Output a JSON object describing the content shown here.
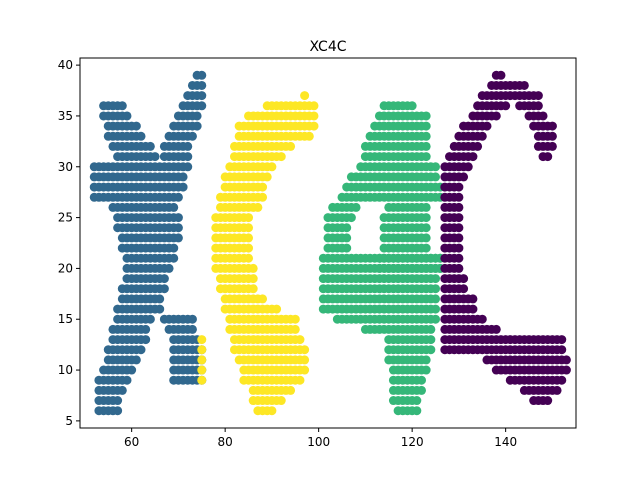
{
  "chart_data": {
    "type": "scatter",
    "title": "XC4C",
    "xlabel": "",
    "ylabel": "",
    "xlim": [
      48.95,
      155.05
    ],
    "ylim": [
      4.3,
      40.7
    ],
    "xticks": [
      60,
      80,
      100,
      120,
      140
    ],
    "yticks": [
      5,
      10,
      15,
      20,
      25,
      30,
      35,
      40
    ],
    "grid": false,
    "colors": {
      "X": "#31688e",
      "C1": "#fde725",
      "4": "#35b779",
      "C2": "#440154"
    },
    "series": [
      {
        "key": "X",
        "rows": [
          [
            6,
            53,
            57
          ],
          [
            7,
            53,
            57
          ],
          [
            8,
            53,
            58
          ],
          [
            9,
            53,
            59
          ],
          [
            10,
            54,
            60
          ],
          [
            11,
            55,
            61
          ],
          [
            12,
            55,
            62
          ],
          [
            13,
            56,
            63
          ],
          [
            14,
            56,
            63
          ],
          [
            15,
            57,
            64
          ],
          [
            16,
            57,
            66
          ],
          [
            17,
            58,
            66
          ],
          [
            18,
            58,
            67
          ],
          [
            19,
            59,
            67
          ],
          [
            20,
            59,
            68
          ],
          [
            21,
            59,
            69
          ],
          [
            22,
            58,
            69
          ],
          [
            23,
            58,
            70
          ],
          [
            24,
            57,
            70
          ],
          [
            25,
            57,
            70
          ],
          [
            26,
            56,
            69
          ],
          [
            27,
            52,
            70
          ],
          [
            28,
            52,
            71
          ],
          [
            29,
            52,
            71
          ],
          [
            30,
            52,
            72
          ],
          [
            31,
            57,
            65
          ],
          [
            32,
            56,
            64
          ],
          [
            33,
            55,
            62
          ],
          [
            34,
            55,
            61
          ],
          [
            35,
            54,
            59
          ],
          [
            36,
            54,
            58
          ],
          [
            9,
            69,
            75
          ],
          [
            10,
            69,
            75
          ],
          [
            11,
            69,
            75
          ],
          [
            12,
            69,
            75
          ],
          [
            13,
            69,
            74
          ],
          [
            14,
            68,
            73
          ],
          [
            15,
            67,
            73
          ],
          [
            31,
            67,
            72
          ],
          [
            32,
            67,
            72
          ],
          [
            33,
            68,
            73
          ],
          [
            34,
            69,
            74
          ],
          [
            35,
            70,
            74
          ],
          [
            36,
            71,
            75
          ],
          [
            37,
            72,
            75
          ],
          [
            38,
            73,
            75
          ],
          [
            39,
            74,
            75
          ]
        ]
      },
      {
        "key": "C1",
        "rows": [
          [
            6,
            87,
            90
          ],
          [
            7,
            86,
            92
          ],
          [
            8,
            86,
            94
          ],
          [
            9,
            84,
            96
          ],
          [
            10,
            84,
            97
          ],
          [
            11,
            83,
            97
          ],
          [
            12,
            82,
            97
          ],
          [
            13,
            82,
            96
          ],
          [
            14,
            81,
            95
          ],
          [
            15,
            81,
            95
          ],
          [
            16,
            80,
            91
          ],
          [
            17,
            80,
            88
          ],
          [
            18,
            79,
            86
          ],
          [
            19,
            79,
            86
          ],
          [
            20,
            78,
            86
          ],
          [
            21,
            78,
            85
          ],
          [
            22,
            78,
            85
          ],
          [
            23,
            78,
            85
          ],
          [
            24,
            78,
            85
          ],
          [
            25,
            78,
            85
          ],
          [
            26,
            79,
            87
          ],
          [
            27,
            79,
            88
          ],
          [
            28,
            80,
            88
          ],
          [
            29,
            80,
            89
          ],
          [
            30,
            81,
            90
          ],
          [
            31,
            82,
            92
          ],
          [
            32,
            82,
            94
          ],
          [
            33,
            83,
            98
          ],
          [
            34,
            83,
            99
          ],
          [
            35,
            85,
            99
          ],
          [
            36,
            89,
            99
          ],
          [
            37,
            97,
            97
          ],
          [
            9,
            75,
            75
          ],
          [
            10,
            75,
            75
          ],
          [
            11,
            75,
            75
          ],
          [
            12,
            75,
            75
          ],
          [
            13,
            75,
            75
          ]
        ]
      },
      {
        "key": "4",
        "rows": [
          [
            6,
            117,
            121
          ],
          [
            7,
            116,
            121
          ],
          [
            8,
            116,
            122
          ],
          [
            9,
            116,
            122
          ],
          [
            10,
            116,
            123
          ],
          [
            11,
            115,
            123
          ],
          [
            12,
            115,
            124
          ],
          [
            13,
            115,
            124
          ],
          [
            14,
            110,
            124
          ],
          [
            15,
            104,
            125
          ],
          [
            16,
            101,
            125
          ],
          [
            17,
            101,
            125
          ],
          [
            18,
            101,
            125
          ],
          [
            19,
            101,
            125
          ],
          [
            20,
            101,
            126
          ],
          [
            21,
            101,
            126
          ],
          [
            22,
            102,
            106
          ],
          [
            23,
            102,
            106
          ],
          [
            24,
            102,
            106
          ],
          [
            25,
            102,
            107
          ],
          [
            26,
            103,
            108
          ],
          [
            27,
            105,
            126
          ],
          [
            28,
            106,
            126
          ],
          [
            29,
            107,
            125
          ],
          [
            30,
            109,
            125
          ],
          [
            31,
            110,
            123
          ],
          [
            32,
            110,
            123
          ],
          [
            33,
            111,
            123
          ],
          [
            34,
            112,
            123
          ],
          [
            35,
            113,
            123
          ],
          [
            36,
            114,
            120
          ],
          [
            22,
            114,
            123
          ],
          [
            23,
            114,
            123
          ],
          [
            24,
            114,
            123
          ],
          [
            25,
            114,
            123
          ],
          [
            26,
            115,
            123
          ],
          [
            20,
            113,
            126
          ],
          [
            21,
            113,
            126
          ]
        ]
      },
      {
        "key": "C2",
        "rows": [
          [
            7,
            146,
            149
          ],
          [
            8,
            144,
            151
          ],
          [
            9,
            141,
            152
          ],
          [
            10,
            138,
            153
          ],
          [
            11,
            136,
            153
          ],
          [
            12,
            127,
            152
          ],
          [
            13,
            127,
            152
          ],
          [
            14,
            127,
            138
          ],
          [
            15,
            127,
            135
          ],
          [
            16,
            127,
            133
          ],
          [
            17,
            127,
            133
          ],
          [
            18,
            127,
            131
          ],
          [
            19,
            127,
            131
          ],
          [
            20,
            127,
            130
          ],
          [
            21,
            127,
            130
          ],
          [
            22,
            127,
            130
          ],
          [
            23,
            127,
            130
          ],
          [
            24,
            127,
            130
          ],
          [
            25,
            127,
            130
          ],
          [
            26,
            127,
            130
          ],
          [
            27,
            127,
            130
          ],
          [
            28,
            127,
            130
          ],
          [
            29,
            127,
            131
          ],
          [
            30,
            127,
            132
          ],
          [
            31,
            128,
            133
          ],
          [
            32,
            129,
            134
          ],
          [
            33,
            130,
            135
          ],
          [
            34,
            131,
            136
          ],
          [
            35,
            133,
            138
          ],
          [
            36,
            134,
            140
          ],
          [
            37,
            135,
            147
          ],
          [
            38,
            137,
            144
          ],
          [
            39,
            138,
            139
          ],
          [
            31,
            148,
            149
          ],
          [
            32,
            147,
            150
          ],
          [
            33,
            147,
            150
          ],
          [
            34,
            146,
            150
          ],
          [
            35,
            145,
            148
          ],
          [
            36,
            143,
            147
          ]
        ]
      }
    ]
  }
}
